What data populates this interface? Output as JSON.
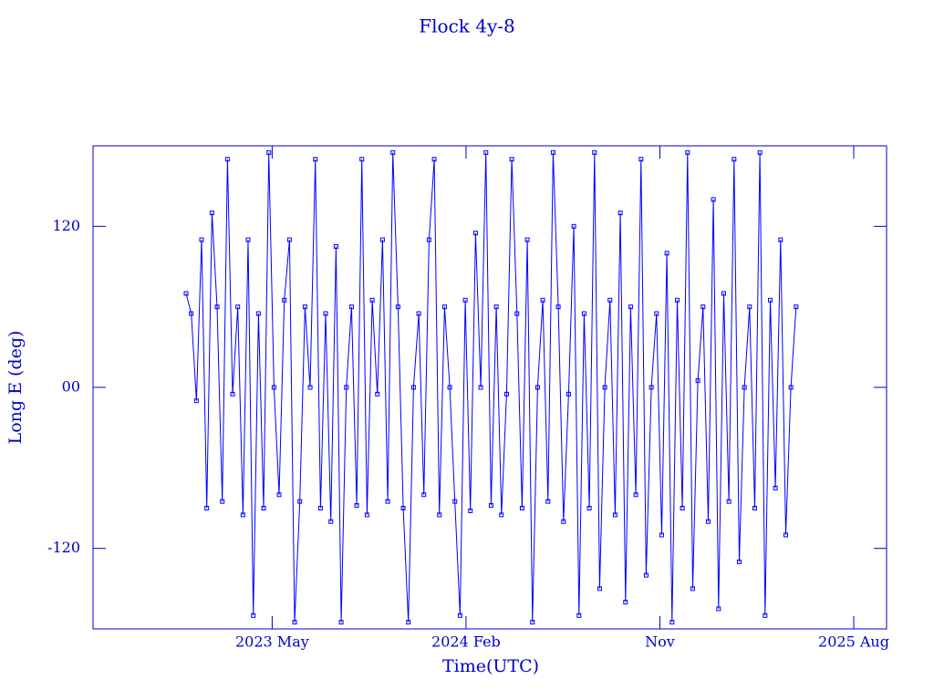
{
  "chart_data": {
    "type": "line",
    "title": "Flock 4y-8",
    "xlabel": "Time(UTC)",
    "ylabel": "Long E (deg)",
    "xlim": [
      2022.64,
      2025.71
    ],
    "ylim": [
      -180,
      180
    ],
    "xticks": [
      {
        "value": 2023.333,
        "label": "2023 May"
      },
      {
        "value": 2024.083,
        "label": "2024 Feb"
      },
      {
        "value": 2024.833,
        "label": "Nov"
      },
      {
        "value": 2025.583,
        "label": "2025 Aug"
      }
    ],
    "yticks": [
      -120,
      {
        "value": 0,
        "label": "00"
      },
      120
    ],
    "series": [
      {
        "color": "#0000ff",
        "x": [
          2023,
          2023.02,
          2023.04,
          2023.06,
          2023.08,
          2023.1,
          2023.12,
          2023.14,
          2023.16,
          2023.18,
          2023.2,
          2023.22,
          2023.24,
          2023.26,
          2023.28,
          2023.3,
          2023.32,
          2023.34,
          2023.36,
          2023.38,
          2023.4,
          2023.42,
          2023.44,
          2023.46,
          2023.48,
          2023.5,
          2023.52,
          2023.54,
          2023.56,
          2023.58,
          2023.6,
          2023.62,
          2023.64,
          2023.66,
          2023.68,
          2023.7,
          2023.72,
          2023.74,
          2023.76,
          2023.78,
          2023.8,
          2023.82,
          2023.84,
          2023.86,
          2023.88,
          2023.9,
          2023.92,
          2023.94,
          2023.96,
          2023.98,
          2024,
          2024.02,
          2024.04,
          2024.06,
          2024.08,
          2024.1,
          2024.12,
          2024.14,
          2024.16,
          2024.18,
          2024.2,
          2024.22,
          2024.24,
          2024.26,
          2024.28,
          2024.3,
          2024.32,
          2024.34,
          2024.36,
          2024.38,
          2024.4,
          2024.42,
          2024.44,
          2024.46,
          2024.48,
          2024.5,
          2024.52,
          2024.54,
          2024.56,
          2024.58,
          2024.6,
          2024.62,
          2024.64,
          2024.66,
          2024.68,
          2024.7,
          2024.72,
          2024.74,
          2024.76,
          2024.78,
          2024.8,
          2024.82,
          2024.84,
          2024.86,
          2024.88,
          2024.9,
          2024.92,
          2024.94,
          2024.96,
          2024.98,
          2025,
          2025.02,
          2025.04,
          2025.06,
          2025.08,
          2025.1,
          2025.12,
          2025.14,
          2025.16,
          2025.18,
          2025.2,
          2025.22,
          2025.24,
          2025.26,
          2025.28,
          2025.3,
          2025.32,
          2025.34,
          2025.36
        ],
        "values": [
          70,
          55,
          -10,
          110,
          -90,
          130,
          60,
          -85,
          170,
          -5,
          60,
          -95,
          110,
          -170,
          55,
          -90,
          175,
          0,
          -80,
          65,
          110,
          -175,
          -85,
          60,
          0,
          170,
          -90,
          55,
          -100,
          105,
          -175,
          0,
          60,
          -88,
          170,
          -95,
          65,
          -5,
          110,
          -85,
          175,
          60,
          -90,
          -175,
          0,
          55,
          -80,
          110,
          170,
          -95,
          60,
          0,
          -85,
          -170,
          65,
          -92,
          115,
          0,
          175,
          -88,
          60,
          -95,
          -5,
          170,
          55,
          -90,
          110,
          -175,
          0,
          65,
          -85,
          175,
          60,
          -100,
          -5,
          120,
          -170,
          55,
          -90,
          175,
          -150,
          0,
          65,
          -95,
          130,
          -160,
          60,
          -80,
          170,
          -140,
          0,
          55,
          -110,
          100,
          -175,
          65,
          -90,
          175,
          -150,
          5,
          60,
          -100,
          140,
          -165,
          70,
          -85,
          170,
          -130,
          0,
          60,
          -90,
          175,
          -170,
          65,
          -75,
          110,
          -110,
          0,
          60
        ]
      }
    ]
  }
}
